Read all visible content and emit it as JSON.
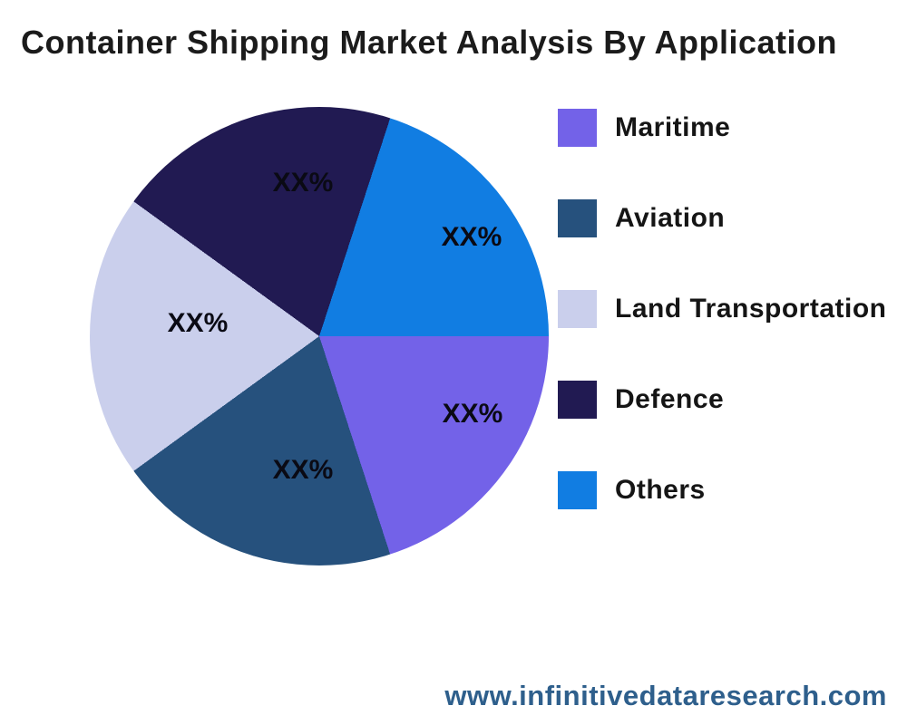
{
  "page": {
    "title": "Container Shipping Market Analysis By Application"
  },
  "chart_data": {
    "type": "pie",
    "title": "Container Shipping Market Analysis By Application",
    "categories": [
      "Maritime",
      "Aviation",
      "Land Transportation",
      "Defence",
      "Others"
    ],
    "values": [
      20,
      20,
      20,
      20,
      20
    ],
    "value_labels": [
      "XX%",
      "XX%",
      "XX%",
      "XX%",
      "XX%"
    ],
    "colors": [
      "#7362e8",
      "#26517d",
      "#cacfec",
      "#211a52",
      "#117de2"
    ],
    "legend_position": "right",
    "start_angle_deg": 0,
    "direction": "clockwise"
  },
  "legend": {
    "items": [
      {
        "label": "Maritime",
        "color": "#7362e8"
      },
      {
        "label": "Aviation",
        "color": "#26517d"
      },
      {
        "label": "Land Transportation",
        "color": "#cacfec"
      },
      {
        "label": "Defence",
        "color": "#211a52"
      },
      {
        "label": "Others",
        "color": "#117de2"
      }
    ]
  },
  "footer": {
    "url": "www.infinitivedataresearch.com",
    "color": "#2e5f8c"
  }
}
